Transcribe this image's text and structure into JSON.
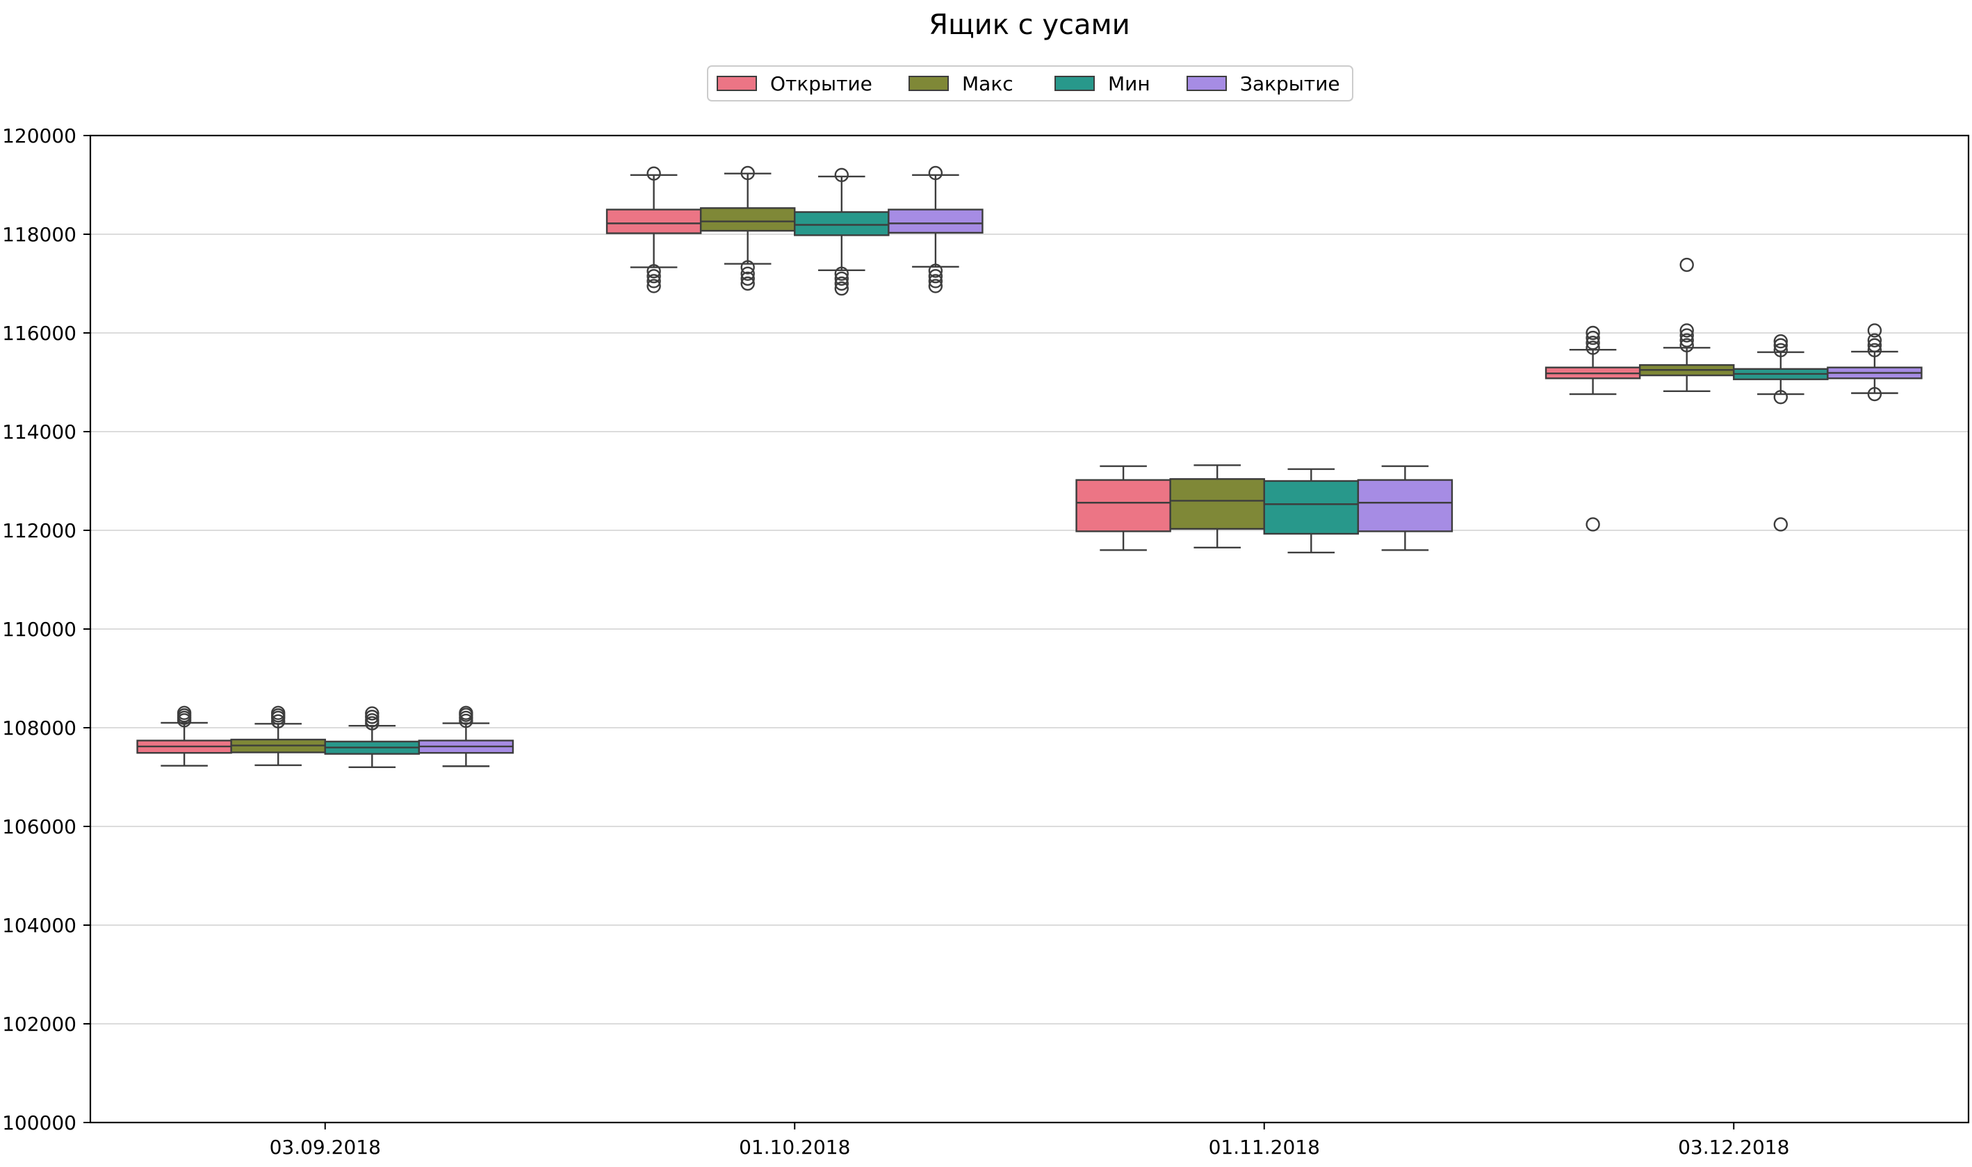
{
  "chart_data": {
    "type": "box",
    "title": "Ящик с усами",
    "xlabel": "",
    "ylabel": "",
    "categories": [
      "03.09.2018",
      "01.10.2018",
      "01.11.2018",
      "03.12.2018"
    ],
    "ylim": [
      100000,
      120000
    ],
    "yticks": [
      100000,
      102000,
      104000,
      106000,
      108000,
      110000,
      112000,
      114000,
      116000,
      118000,
      120000
    ],
    "grid": "horizontal",
    "legend_position": "top-center",
    "series": [
      {
        "name": "Открытие",
        "color": "#ec7585",
        "stats": [
          {
            "whislo": 107230,
            "q1": 107490,
            "med": 107620,
            "q3": 107740,
            "whishi": 108100,
            "fliers": [
              108150,
              108200,
              108250,
              108300
            ]
          },
          {
            "whislo": 117330,
            "q1": 118020,
            "med": 118220,
            "q3": 118500,
            "whishi": 119200,
            "fliers": [
              117250,
              117150,
              117050,
              116950,
              119230
            ]
          },
          {
            "whislo": 111600,
            "q1": 111980,
            "med": 112560,
            "q3": 113020,
            "whishi": 113300,
            "fliers": []
          },
          {
            "whislo": 114760,
            "q1": 115080,
            "med": 115180,
            "q3": 115300,
            "whishi": 115660,
            "fliers": [
              115700,
              115800,
              115900,
              116000,
              112120
            ]
          }
        ]
      },
      {
        "name": "Макс",
        "color": "#7f8837",
        "stats": [
          {
            "whislo": 107240,
            "q1": 107500,
            "med": 107640,
            "q3": 107760,
            "whishi": 108080,
            "fliers": [
              108130,
              108200,
              108250,
              108300
            ]
          },
          {
            "whislo": 117400,
            "q1": 118070,
            "med": 118260,
            "q3": 118530,
            "whishi": 119230,
            "fliers": [
              117330,
              117200,
              117100,
              117000,
              119240
            ]
          },
          {
            "whislo": 111650,
            "q1": 112030,
            "med": 112600,
            "q3": 113040,
            "whishi": 113320,
            "fliers": []
          },
          {
            "whislo": 114820,
            "q1": 115140,
            "med": 115250,
            "q3": 115350,
            "whishi": 115700,
            "fliers": [
              115750,
              115850,
              115950,
              116050,
              117380
            ]
          }
        ]
      },
      {
        "name": "Мин",
        "color": "#28988b",
        "stats": [
          {
            "whislo": 107200,
            "q1": 107470,
            "med": 107600,
            "q3": 107720,
            "whishi": 108040,
            "fliers": [
              108090,
              108150,
              108220,
              108290
            ]
          },
          {
            "whislo": 117270,
            "q1": 117980,
            "med": 118190,
            "q3": 118450,
            "whishi": 119170,
            "fliers": [
              117200,
              117100,
              117000,
              116900,
              119200
            ]
          },
          {
            "whislo": 111550,
            "q1": 111930,
            "med": 112530,
            "q3": 113000,
            "whishi": 113240,
            "fliers": []
          },
          {
            "whislo": 114760,
            "q1": 115060,
            "med": 115170,
            "q3": 115270,
            "whishi": 115610,
            "fliers": [
              115650,
              115750,
              115830,
              114700,
              112120
            ]
          }
        ]
      },
      {
        "name": "Закрытие",
        "color": "#a68ce4",
        "stats": [
          {
            "whislo": 107220,
            "q1": 107490,
            "med": 107620,
            "q3": 107740,
            "whishi": 108090,
            "fliers": [
              108140,
              108200,
              108260,
              108300
            ]
          },
          {
            "whislo": 117340,
            "q1": 118030,
            "med": 118220,
            "q3": 118500,
            "whishi": 119200,
            "fliers": [
              117260,
              117150,
              117050,
              116950,
              119240
            ]
          },
          {
            "whislo": 111600,
            "q1": 111980,
            "med": 112560,
            "q3": 113020,
            "whishi": 113300,
            "fliers": []
          },
          {
            "whislo": 114780,
            "q1": 115080,
            "med": 115190,
            "q3": 115300,
            "whishi": 115620,
            "fliers": [
              115650,
              115750,
              115850,
              116050,
              114760
            ]
          }
        ]
      }
    ]
  }
}
